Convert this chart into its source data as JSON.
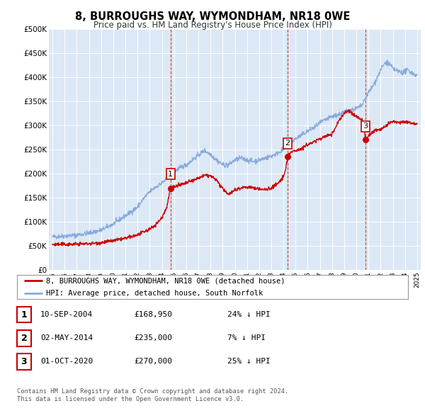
{
  "title": "8, BURROUGHS WAY, WYMONDHAM, NR18 0WE",
  "subtitle": "Price paid vs. HM Land Registry's House Price Index (HPI)",
  "bg_color": "#ffffff",
  "plot_bg_color": "#dce8f5",
  "grid_color": "#ffffff",
  "sale_line_color": "#cc0000",
  "hpi_line_color": "#88aadd",
  "ylim": [
    0,
    500000
  ],
  "yticks": [
    0,
    50000,
    100000,
    150000,
    200000,
    250000,
    300000,
    350000,
    400000,
    450000,
    500000
  ],
  "ytick_labels": [
    "£0",
    "£50K",
    "£100K",
    "£150K",
    "£200K",
    "£250K",
    "£300K",
    "£350K",
    "£400K",
    "£450K",
    "£500K"
  ],
  "xlim_start": 1994.7,
  "xlim_end": 2025.3,
  "xticks": [
    1995,
    1996,
    1997,
    1998,
    1999,
    2000,
    2001,
    2002,
    2003,
    2004,
    2005,
    2006,
    2007,
    2008,
    2009,
    2010,
    2011,
    2012,
    2013,
    2014,
    2015,
    2016,
    2017,
    2018,
    2019,
    2020,
    2021,
    2022,
    2023,
    2024,
    2025
  ],
  "sale_points": [
    {
      "date": 2004.7,
      "price": 168950,
      "label": "1"
    },
    {
      "date": 2014.33,
      "price": 235000,
      "label": "2"
    },
    {
      "date": 2020.75,
      "price": 270000,
      "label": "3"
    }
  ],
  "legend_sale_label": "8, BURROUGHS WAY, WYMONDHAM, NR18 0WE (detached house)",
  "legend_hpi_label": "HPI: Average price, detached house, South Norfolk",
  "table_rows": [
    {
      "num": "1",
      "date": "10-SEP-2004",
      "price": "£168,950",
      "hpi": "24% ↓ HPI"
    },
    {
      "num": "2",
      "date": "02-MAY-2014",
      "price": "£235,000",
      "hpi": "7% ↓ HPI"
    },
    {
      "num": "3",
      "date": "01-OCT-2020",
      "price": "£270,000",
      "hpi": "25% ↓ HPI"
    }
  ],
  "footer": "Contains HM Land Registry data © Crown copyright and database right 2024.\nThis data is licensed under the Open Government Licence v3.0."
}
